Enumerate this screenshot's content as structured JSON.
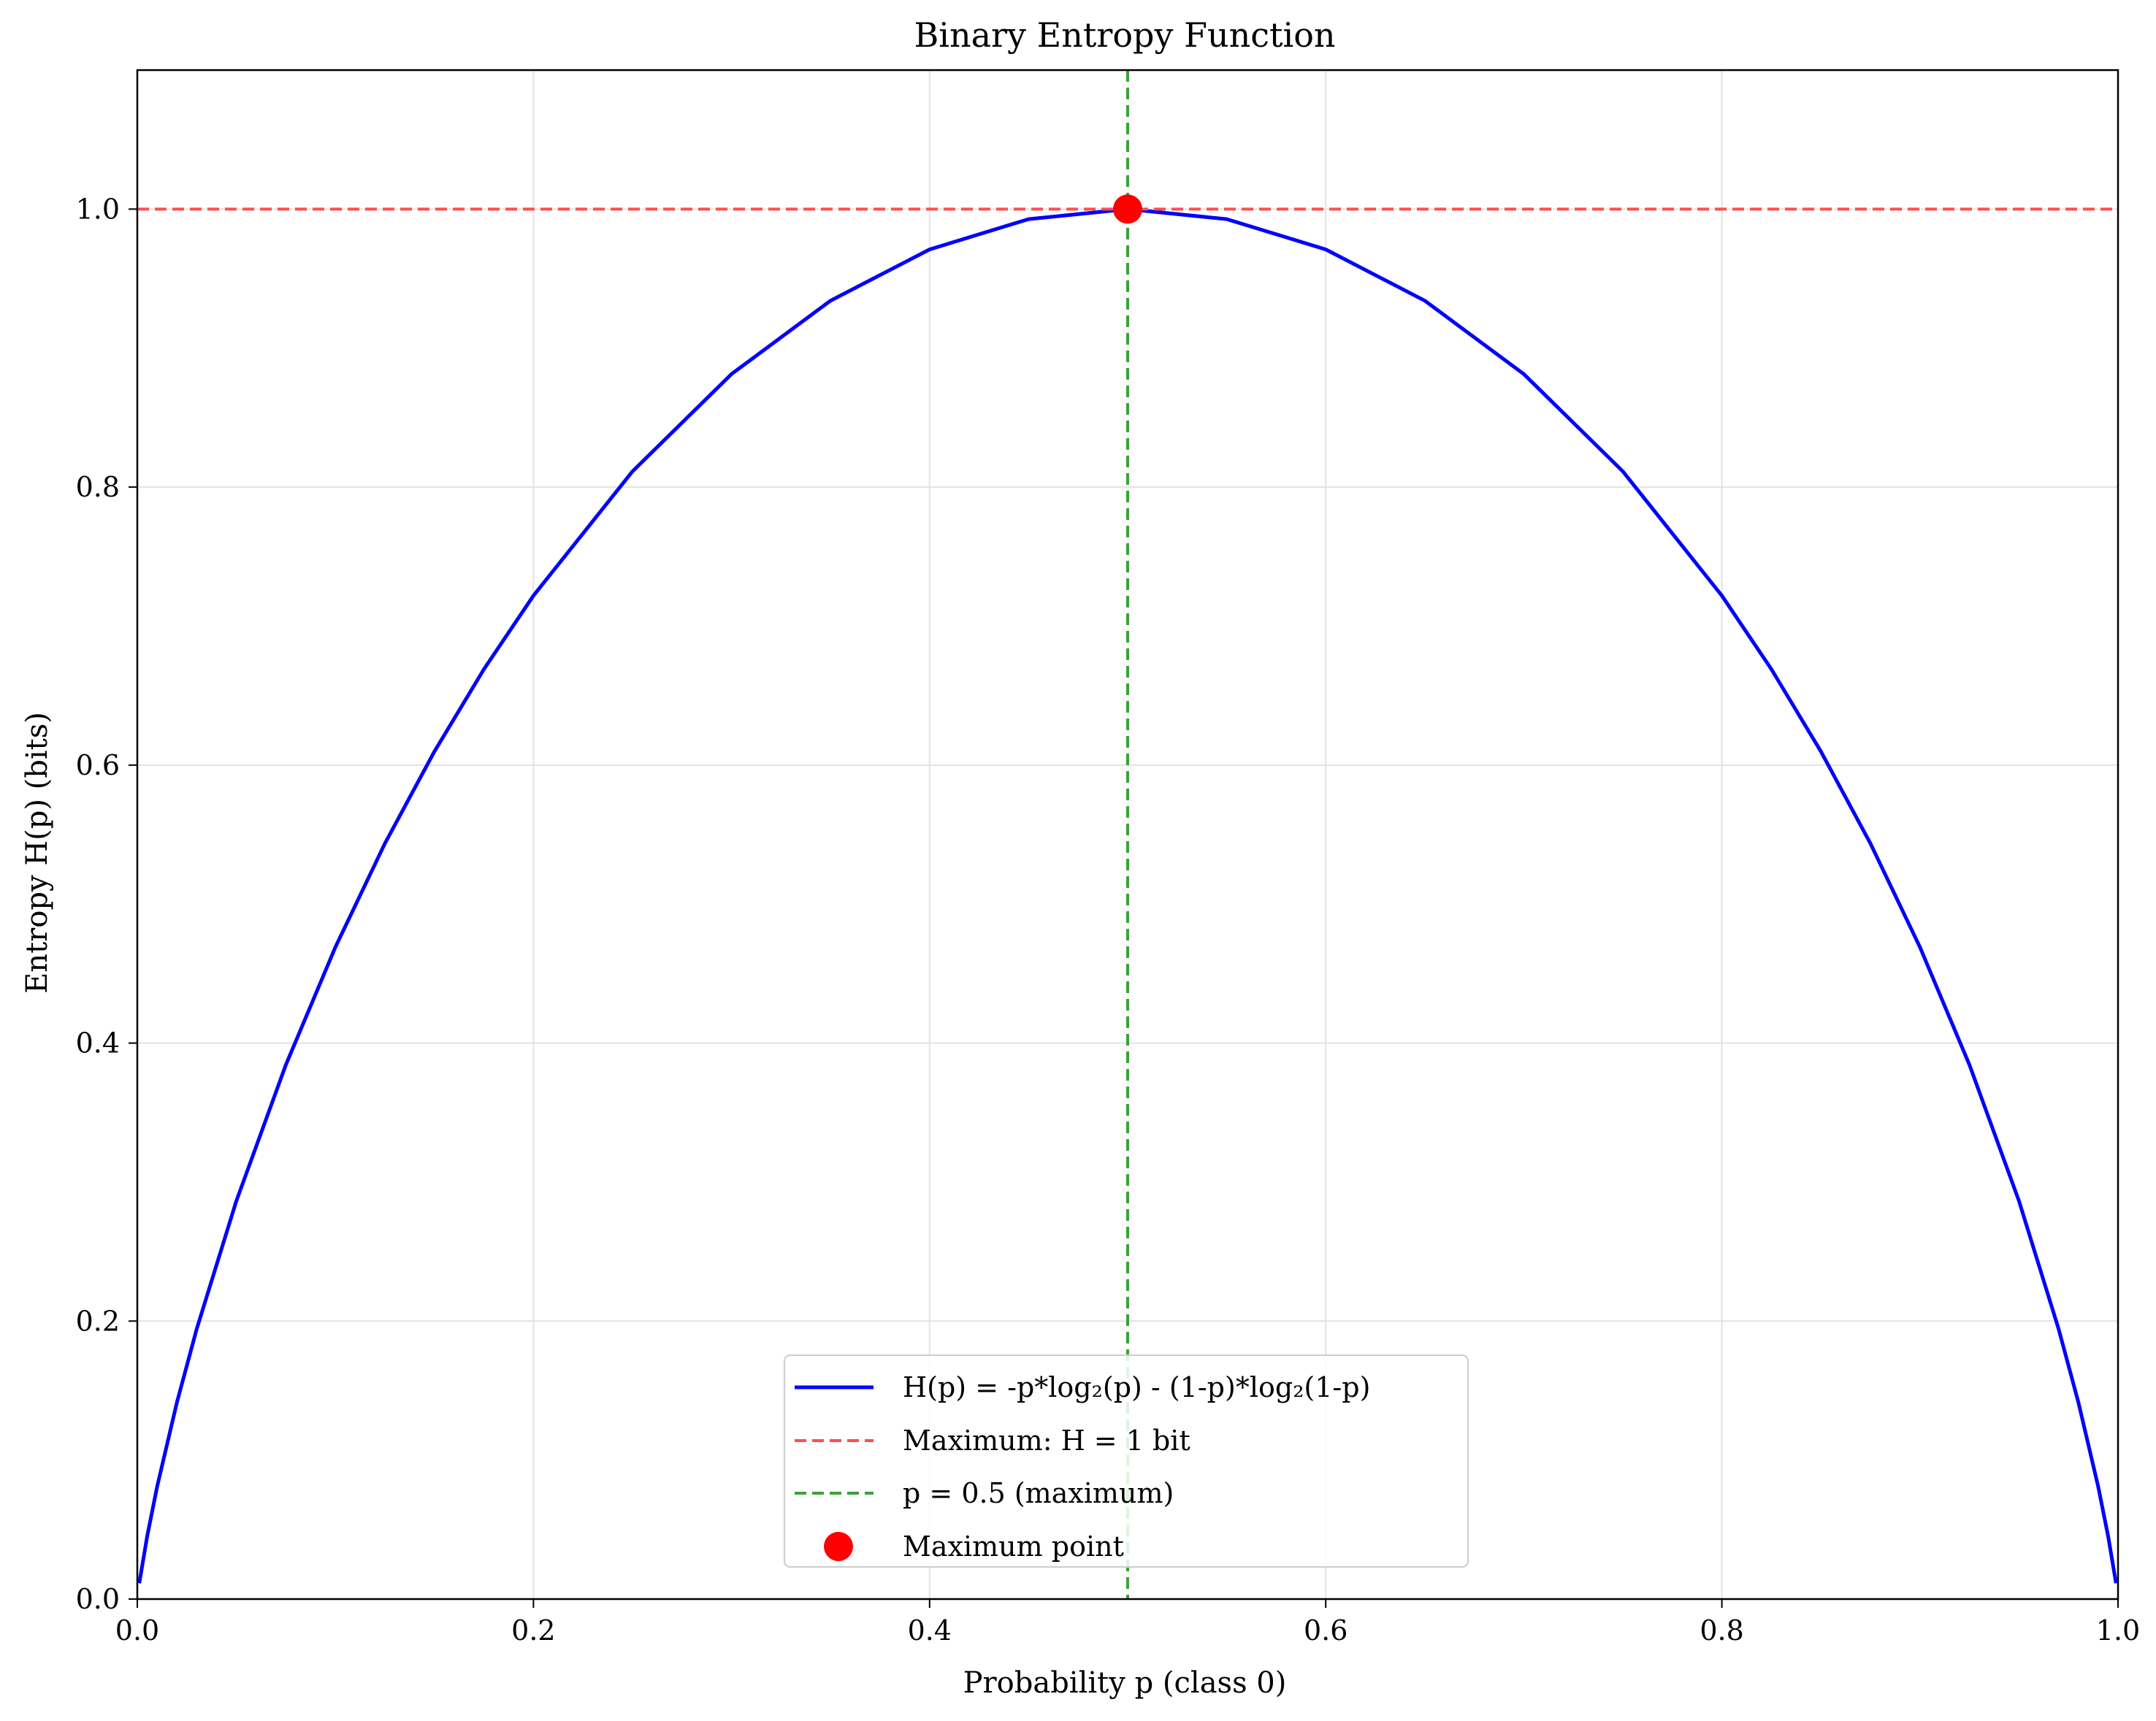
{
  "chart_data": {
    "type": "line",
    "title": "Binary Entropy Function",
    "xlabel": "Probability p (class 0)",
    "ylabel": "Entropy H(p) (bits)",
    "xlim": [
      0.0,
      1.0
    ],
    "ylim": [
      0.0,
      1.1
    ],
    "x_ticks": [
      "0.0",
      "0.2",
      "0.4",
      "0.6",
      "0.8",
      "1.0"
    ],
    "y_ticks": [
      "0.0",
      "0.2",
      "0.4",
      "0.6",
      "0.8",
      "1.0"
    ],
    "grid": true,
    "legend_position": "lower center",
    "series": [
      {
        "name": "H(p) = -p*log₂(p) - (1-p)*log₂(1-p)",
        "type": "line",
        "color": "#0000ff",
        "style": "solid",
        "x": [
          0.001,
          0.005,
          0.01,
          0.02,
          0.03,
          0.05,
          0.075,
          0.1,
          0.125,
          0.15,
          0.175,
          0.2,
          0.25,
          0.3,
          0.35,
          0.4,
          0.45,
          0.5,
          0.55,
          0.6,
          0.65,
          0.7,
          0.75,
          0.8,
          0.825,
          0.85,
          0.875,
          0.9,
          0.925,
          0.95,
          0.97,
          0.98,
          0.99,
          0.995,
          0.999
        ],
        "y": [
          0.0114,
          0.0454,
          0.0808,
          0.1414,
          0.1944,
          0.2864,
          0.3843,
          0.469,
          0.5436,
          0.6098,
          0.669,
          0.7219,
          0.8113,
          0.8813,
          0.9341,
          0.971,
          0.9928,
          1.0,
          0.9928,
          0.971,
          0.9341,
          0.8813,
          0.8113,
          0.7219,
          0.669,
          0.6098,
          0.5436,
          0.469,
          0.3843,
          0.2864,
          0.1944,
          0.1414,
          0.0808,
          0.0454,
          0.0114
        ]
      },
      {
        "name": "Maximum: H = 1 bit",
        "type": "hline",
        "y": 1.0,
        "color": "#ff4d4d",
        "style": "dashed"
      },
      {
        "name": "p = 0.5 (maximum)",
        "type": "vline",
        "x": 0.5,
        "color": "#3aa23a",
        "style": "dashed"
      },
      {
        "name": "Maximum point",
        "type": "scatter",
        "x": [
          0.5
        ],
        "y": [
          1.0
        ],
        "color": "#ff0000"
      }
    ]
  }
}
